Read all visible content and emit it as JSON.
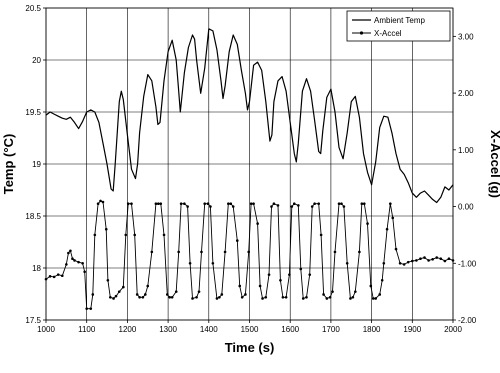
{
  "chart_data": {
    "type": "line",
    "title": "",
    "xlabel": "Time (s)",
    "ylabel_left": "Temp (°C)",
    "ylabel_right": "X-Accel (g)",
    "xlim": [
      1000,
      2000
    ],
    "ylim_left": [
      17.5,
      20.5
    ],
    "ylim_right": [
      -2.0,
      3.5
    ],
    "x_ticks": [
      "1000",
      "1100",
      "1200",
      "1300",
      "1400",
      "1500",
      "1600",
      "1700",
      "1800",
      "1900",
      "2000"
    ],
    "y_left_ticks": [
      "17.5",
      "18",
      "18.5",
      "19",
      "19.5",
      "20",
      "20.5"
    ],
    "y_right_ticks": [
      "-2.00",
      "-1.00",
      "0.00",
      "1.00",
      "2.00",
      "3.00"
    ],
    "grid": true,
    "legend_position": "top-right",
    "series": [
      {
        "name": "Ambient Temp",
        "axis": "left",
        "marker": "none",
        "x": [
          1000,
          1010,
          1020,
          1030,
          1040,
          1050,
          1060,
          1070,
          1080,
          1090,
          1100,
          1110,
          1120,
          1130,
          1140,
          1150,
          1160,
          1165,
          1170,
          1180,
          1185,
          1190,
          1200,
          1210,
          1220,
          1225,
          1230,
          1240,
          1250,
          1260,
          1270,
          1275,
          1280,
          1290,
          1300,
          1310,
          1320,
          1325,
          1330,
          1340,
          1350,
          1360,
          1365,
          1370,
          1380,
          1390,
          1400,
          1410,
          1420,
          1430,
          1435,
          1440,
          1450,
          1460,
          1470,
          1480,
          1490,
          1495,
          1500,
          1510,
          1520,
          1530,
          1540,
          1550,
          1555,
          1560,
          1570,
          1580,
          1590,
          1600,
          1610,
          1615,
          1620,
          1630,
          1640,
          1650,
          1660,
          1670,
          1675,
          1680,
          1690,
          1700,
          1710,
          1720,
          1730,
          1740,
          1750,
          1760,
          1770,
          1780,
          1790,
          1800,
          1810,
          1820,
          1830,
          1840,
          1850,
          1860,
          1870,
          1880,
          1890,
          1900,
          1910,
          1920,
          1930,
          1940,
          1950,
          1960,
          1970,
          1980,
          1990,
          2000
        ],
        "y": [
          19.47,
          19.5,
          19.48,
          19.46,
          19.44,
          19.43,
          19.45,
          19.4,
          19.34,
          19.41,
          19.5,
          19.52,
          19.5,
          19.4,
          19.2,
          19.0,
          18.76,
          18.74,
          19.0,
          19.6,
          19.7,
          19.62,
          19.28,
          18.95,
          18.86,
          19.0,
          19.3,
          19.65,
          19.86,
          19.8,
          19.55,
          19.38,
          19.4,
          19.8,
          20.08,
          20.19,
          20.0,
          19.75,
          19.5,
          19.88,
          20.12,
          20.24,
          20.2,
          20.0,
          19.68,
          19.92,
          20.3,
          20.28,
          20.1,
          19.8,
          19.63,
          19.75,
          20.08,
          20.24,
          20.15,
          19.9,
          19.68,
          19.52,
          19.6,
          19.95,
          19.98,
          19.9,
          19.6,
          19.22,
          19.28,
          19.6,
          19.8,
          19.84,
          19.7,
          19.4,
          19.1,
          19.02,
          19.2,
          19.7,
          19.82,
          19.7,
          19.42,
          19.12,
          19.1,
          19.32,
          19.64,
          19.72,
          19.5,
          19.16,
          19.05,
          19.3,
          19.6,
          19.65,
          19.45,
          19.1,
          18.92,
          18.8,
          19.02,
          19.35,
          19.46,
          19.45,
          19.3,
          19.1,
          18.95,
          18.9,
          18.82,
          18.72,
          18.68,
          18.72,
          18.74,
          18.7,
          18.66,
          18.63,
          18.68,
          18.78,
          18.75,
          18.8
        ]
      },
      {
        "name": "X-Accel",
        "axis": "right",
        "marker": "dot",
        "x": [
          1000,
          1010,
          1020,
          1030,
          1040,
          1050,
          1055,
          1060,
          1065,
          1070,
          1080,
          1090,
          1095,
          1100,
          1110,
          1115,
          1120,
          1128,
          1134,
          1140,
          1148,
          1152,
          1158,
          1166,
          1172,
          1180,
          1190,
          1196,
          1202,
          1210,
          1218,
          1224,
          1230,
          1238,
          1244,
          1250,
          1260,
          1270,
          1276,
          1282,
          1290,
          1298,
          1304,
          1310,
          1320,
          1326,
          1332,
          1340,
          1348,
          1354,
          1360,
          1370,
          1376,
          1382,
          1390,
          1398,
          1404,
          1410,
          1420,
          1426,
          1432,
          1440,
          1448,
          1454,
          1460,
          1470,
          1476,
          1482,
          1490,
          1498,
          1504,
          1510,
          1520,
          1526,
          1532,
          1540,
          1548,
          1554,
          1560,
          1570,
          1576,
          1582,
          1590,
          1598,
          1604,
          1610,
          1620,
          1626,
          1632,
          1640,
          1648,
          1654,
          1660,
          1670,
          1676,
          1682,
          1690,
          1698,
          1704,
          1710,
          1720,
          1726,
          1732,
          1740,
          1748,
          1754,
          1760,
          1770,
          1776,
          1782,
          1790,
          1798,
          1804,
          1810,
          1820,
          1826,
          1830,
          1838,
          1846,
          1852,
          1860,
          1870,
          1880,
          1890,
          1900,
          1910,
          1920,
          1930,
          1940,
          1950,
          1960,
          1970,
          1980,
          1990,
          2000
        ],
        "y": [
          -1.28,
          -1.23,
          -1.24,
          -1.2,
          -1.22,
          -1.02,
          -0.82,
          -0.78,
          -0.92,
          -0.95,
          -0.98,
          -1.0,
          -1.15,
          -1.8,
          -1.8,
          -1.55,
          -0.5,
          0.05,
          0.1,
          0.08,
          -0.4,
          -1.3,
          -1.6,
          -1.62,
          -1.58,
          -1.5,
          -1.42,
          -0.5,
          0.05,
          0.05,
          -0.5,
          -1.55,
          -1.6,
          -1.6,
          -1.55,
          -1.4,
          -0.8,
          0.05,
          0.05,
          0.05,
          -0.5,
          -1.55,
          -1.6,
          -1.6,
          -1.5,
          -0.8,
          0.05,
          0.05,
          0.0,
          -1.0,
          -1.62,
          -1.6,
          -1.5,
          -0.8,
          0.05,
          0.05,
          0.0,
          -1.0,
          -1.62,
          -1.6,
          -1.55,
          -0.8,
          0.05,
          0.05,
          0.0,
          -0.6,
          -1.4,
          -1.6,
          -1.55,
          -0.8,
          0.05,
          0.05,
          -0.3,
          -1.4,
          -1.62,
          -1.6,
          -1.2,
          0.0,
          0.05,
          0.02,
          -1.3,
          -1.6,
          -1.6,
          -1.2,
          0.0,
          0.05,
          0.02,
          -1.1,
          -1.62,
          -1.6,
          -1.2,
          0.0,
          0.05,
          0.05,
          -0.5,
          -1.55,
          -1.62,
          -1.6,
          -1.5,
          -0.8,
          0.05,
          0.05,
          0.0,
          -1.0,
          -1.62,
          -1.6,
          -1.5,
          -0.8,
          0.05,
          0.05,
          -0.3,
          -1.4,
          -1.62,
          -1.62,
          -1.55,
          -1.3,
          -1.0,
          -0.4,
          0.05,
          -0.2,
          -0.75,
          -1.0,
          -1.02,
          -0.98,
          -0.96,
          -0.95,
          -0.92,
          -0.9,
          -0.95,
          -0.93,
          -0.9,
          -0.92,
          -0.96,
          -0.92,
          -0.95
        ]
      }
    ]
  }
}
